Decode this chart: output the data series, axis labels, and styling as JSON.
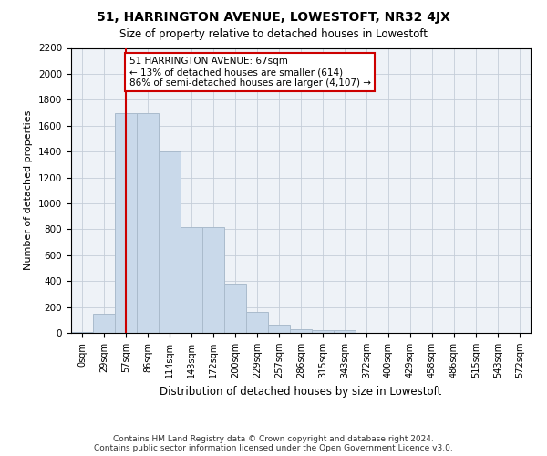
{
  "title": "51, HARRINGTON AVENUE, LOWESTOFT, NR32 4JX",
  "subtitle": "Size of property relative to detached houses in Lowestoft",
  "xlabel": "Distribution of detached houses by size in Lowestoft",
  "ylabel": "Number of detached properties",
  "bar_color": "#c9d9ea",
  "bar_edge_color": "#aabbcc",
  "background_color": "#eef2f7",
  "grid_color": "#c5cdd8",
  "vline_color": "#cc0000",
  "vline_x": 2,
  "annotation_text": "51 HARRINGTON AVENUE: 67sqm\n← 13% of detached houses are smaller (614)\n86% of semi-detached houses are larger (4,107) →",
  "annotation_box_color": "white",
  "annotation_box_edge": "#cc0000",
  "bins": [
    "0sqm",
    "29sqm",
    "57sqm",
    "86sqm",
    "114sqm",
    "143sqm",
    "172sqm",
    "200sqm",
    "229sqm",
    "257sqm",
    "286sqm",
    "315sqm",
    "343sqm",
    "372sqm",
    "400sqm",
    "429sqm",
    "458sqm",
    "486sqm",
    "515sqm",
    "543sqm",
    "572sqm"
  ],
  "values": [
    10,
    150,
    1700,
    1700,
    1400,
    820,
    820,
    380,
    160,
    60,
    30,
    20,
    20,
    0,
    0,
    0,
    0,
    0,
    0,
    0,
    0
  ],
  "ylim": [
    0,
    2200
  ],
  "yticks": [
    0,
    200,
    400,
    600,
    800,
    1000,
    1200,
    1400,
    1600,
    1800,
    2000,
    2200
  ],
  "footer": "Contains HM Land Registry data © Crown copyright and database right 2024.\nContains public sector information licensed under the Open Government Licence v3.0.",
  "figsize": [
    6.0,
    5.0
  ],
  "dpi": 100
}
